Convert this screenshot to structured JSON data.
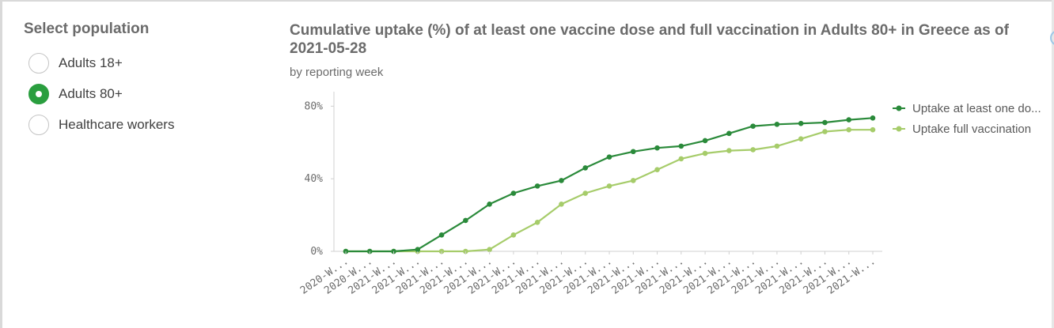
{
  "selector": {
    "title": "Select population",
    "options": [
      {
        "label": "Adults 18+",
        "checked": false
      },
      {
        "label": "Adults 80+",
        "checked": true
      },
      {
        "label": "Healthcare workers",
        "checked": false
      }
    ]
  },
  "colors": {
    "series1": "#2a8a3a",
    "series2": "#a6cc6a",
    "selected_radio": "#2a9e3f"
  },
  "chart_data": {
    "type": "line",
    "title": "Cumulative uptake (%) of at least one vaccine dose and full vaccination in Adults 80+ in Greece as of 2021-05-28",
    "subtitle": "by reporting week",
    "xlabel": "",
    "ylabel": "",
    "ylim": [
      0,
      88
    ],
    "yticks": [
      {
        "value": 0,
        "label": "0%"
      },
      {
        "value": 40,
        "label": "40%"
      },
      {
        "value": 80,
        "label": "80%"
      }
    ],
    "categories": [
      "2020-W...",
      "2020-W...",
      "2021-W...",
      "2021-W...",
      "2021-W...",
      "2021-W...",
      "2021-W...",
      "2021-W...",
      "2021-W...",
      "2021-W...",
      "2021-W...",
      "2021-W...",
      "2021-W...",
      "2021-W...",
      "2021-W...",
      "2021-W...",
      "2021-W...",
      "2021-W...",
      "2021-W...",
      "2021-W...",
      "2021-W...",
      "2021-W...",
      "2021-W..."
    ],
    "series": [
      {
        "name": "Uptake at least one do...",
        "values": [
          0,
          0,
          0,
          1,
          9,
          17,
          26,
          32,
          36,
          39,
          46,
          52,
          55,
          57,
          58,
          61,
          65,
          69,
          70,
          70.5,
          71,
          72.5,
          73.5
        ]
      },
      {
        "name": "Uptake full vaccination",
        "values": [
          0,
          0,
          0,
          0,
          0,
          0,
          1,
          9,
          16,
          26,
          32,
          36,
          39,
          45,
          51,
          54,
          55.5,
          56,
          58,
          62,
          66,
          67,
          67
        ]
      }
    ],
    "grid": false,
    "legend_position": "right"
  }
}
